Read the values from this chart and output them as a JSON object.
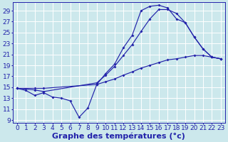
{
  "bg_color": "#cce8ec",
  "grid_color": "#ffffff",
  "line_color": "#2222aa",
  "xlabel": "Graphe des températures (°c)",
  "xlabel_fontsize": 8,
  "tick_fontsize": 6.5,
  "xlim": [
    -0.5,
    23.5
  ],
  "ylim": [
    8.5,
    30.5
  ],
  "yticks": [
    9,
    11,
    13,
    15,
    17,
    19,
    21,
    23,
    25,
    27,
    29
  ],
  "xticks": [
    0,
    1,
    2,
    3,
    4,
    5,
    6,
    7,
    8,
    9,
    10,
    11,
    12,
    13,
    14,
    15,
    16,
    17,
    18,
    19,
    20,
    21,
    22,
    23
  ],
  "curve1_x": [
    0,
    1,
    2,
    3,
    4,
    5,
    6,
    7,
    8,
    9,
    10,
    11,
    12,
    13,
    14,
    15,
    16,
    17,
    18,
    19,
    20,
    21,
    22,
    23
  ],
  "curve1_y": [
    14.8,
    14.4,
    13.5,
    14.0,
    13.2,
    13.0,
    12.5,
    9.5,
    11.2,
    15.5,
    17.5,
    19.2,
    22.2,
    24.5,
    29.0,
    29.8,
    30.0,
    29.5,
    27.5,
    26.8,
    24.2,
    22.0,
    20.5,
    20.2
  ],
  "curve2_x": [
    0,
    2,
    3,
    9,
    10,
    11,
    12,
    13,
    14,
    15,
    16,
    17,
    18,
    19,
    20,
    21,
    22,
    23
  ],
  "curve2_y": [
    14.8,
    14.5,
    14.2,
    15.8,
    17.2,
    18.8,
    20.8,
    22.8,
    25.2,
    27.5,
    29.2,
    29.2,
    28.5,
    26.8,
    24.2,
    22.0,
    20.5,
    20.2
  ],
  "curve3_x": [
    0,
    2,
    3,
    9,
    10,
    11,
    12,
    13,
    14,
    15,
    16,
    17,
    18,
    19,
    20,
    21,
    22,
    23
  ],
  "curve3_y": [
    14.8,
    14.8,
    14.8,
    15.5,
    16.0,
    16.5,
    17.2,
    17.8,
    18.5,
    19.0,
    19.5,
    20.0,
    20.2,
    20.5,
    20.8,
    20.8,
    20.5,
    20.2
  ]
}
